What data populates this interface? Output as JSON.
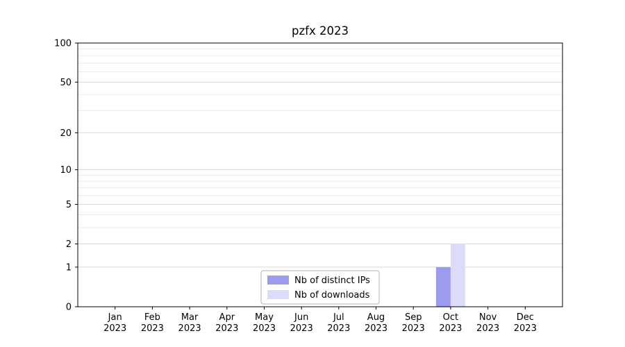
{
  "chart_data": {
    "type": "bar",
    "title": "pzfx 2023",
    "categories": [
      "Jan 2023",
      "Feb 2023",
      "Mar 2023",
      "Apr 2023",
      "May 2023",
      "Jun 2023",
      "Jul 2023",
      "Aug 2023",
      "Sep 2023",
      "Oct 2023",
      "Nov 2023",
      "Dec 2023"
    ],
    "series": [
      {
        "name": "Nb of distinct IPs",
        "color": "#9c9cef",
        "values": [
          0,
          0,
          0,
          0,
          0,
          0,
          0,
          0,
          0,
          1,
          0,
          0
        ]
      },
      {
        "name": "Nb of downloads",
        "color": "#dcdcf8",
        "values": [
          0,
          0,
          0,
          0,
          0,
          0,
          0,
          0,
          0,
          2,
          0,
          0
        ]
      }
    ],
    "yticks": [
      0,
      1,
      2,
      5,
      10,
      20,
      50,
      100
    ],
    "ylim": [
      0,
      100
    ],
    "yscale": "log1p",
    "xlabel": "",
    "ylabel": "",
    "grid": "horizontal-minor-and-major",
    "legend_position": "lower center",
    "colors": {
      "major_grid": "#d7d7d7",
      "minor_grid": "#ebebeb",
      "axis_frame": "#000000",
      "legend_border": "#b3b3b3"
    }
  }
}
